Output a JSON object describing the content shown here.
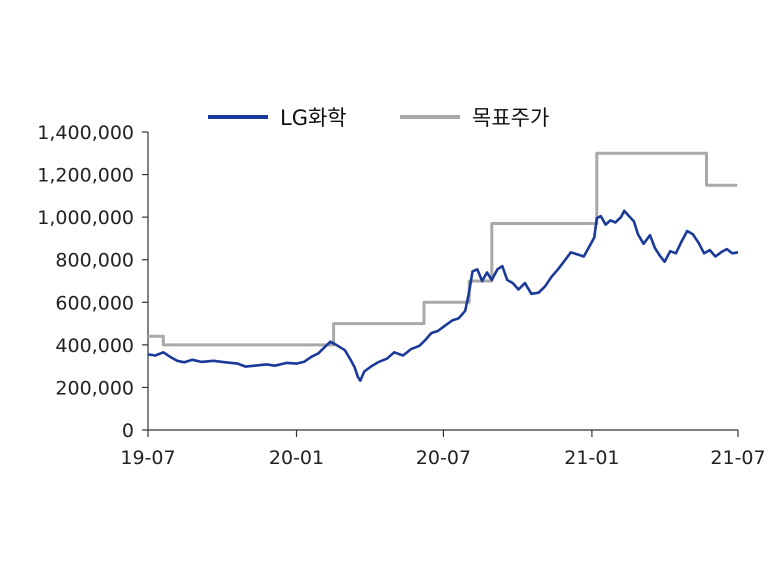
{
  "chart_data": {
    "type": "line",
    "title": "",
    "xlabel": "",
    "ylabel": "",
    "ylim": [
      0,
      1400000
    ],
    "yticks": [
      0,
      200000,
      400000,
      600000,
      800000,
      1000000,
      1200000,
      1400000
    ],
    "ytick_labels": [
      "0",
      "200,000",
      "400,000",
      "600,000",
      "800,000",
      "1,000,000",
      "1,200,000",
      "1,400,000"
    ],
    "xlim": [
      "2019-07-01",
      "2021-07-01"
    ],
    "xticks": [
      "2019-07-01",
      "2020-01-01",
      "2020-07-01",
      "2021-01-01",
      "2021-07-01"
    ],
    "xtick_labels": [
      "19-07",
      "20-01",
      "20-07",
      "21-01",
      "21-07"
    ],
    "grid": false,
    "legend_position": "top",
    "series": [
      {
        "name": "LG화학",
        "color": "#1a3a99",
        "style": "line",
        "points": [
          [
            "2019-07-01",
            355000
          ],
          [
            "2019-07-10",
            350000
          ],
          [
            "2019-07-20",
            365000
          ],
          [
            "2019-07-28",
            345000
          ],
          [
            "2019-08-06",
            325000
          ],
          [
            "2019-08-15",
            318000
          ],
          [
            "2019-08-25",
            330000
          ],
          [
            "2019-09-05",
            320000
          ],
          [
            "2019-09-20",
            325000
          ],
          [
            "2019-10-05",
            318000
          ],
          [
            "2019-10-20",
            312000
          ],
          [
            "2019-10-30",
            298000
          ],
          [
            "2019-11-10",
            302000
          ],
          [
            "2019-11-25",
            308000
          ],
          [
            "2019-12-05",
            302000
          ],
          [
            "2019-12-20",
            315000
          ],
          [
            "2020-01-01",
            312000
          ],
          [
            "2020-01-10",
            320000
          ],
          [
            "2020-01-20",
            345000
          ],
          [
            "2020-01-28",
            360000
          ],
          [
            "2020-02-05",
            390000
          ],
          [
            "2020-02-12",
            415000
          ],
          [
            "2020-02-20",
            398000
          ],
          [
            "2020-03-01",
            375000
          ],
          [
            "2020-03-08",
            330000
          ],
          [
            "2020-03-13",
            295000
          ],
          [
            "2020-03-17",
            250000
          ],
          [
            "2020-03-20",
            232000
          ],
          [
            "2020-03-25",
            275000
          ],
          [
            "2020-04-03",
            300000
          ],
          [
            "2020-04-12",
            320000
          ],
          [
            "2020-04-22",
            335000
          ],
          [
            "2020-05-01",
            365000
          ],
          [
            "2020-05-12",
            350000
          ],
          [
            "2020-05-22",
            380000
          ],
          [
            "2020-06-01",
            395000
          ],
          [
            "2020-06-08",
            420000
          ],
          [
            "2020-06-16",
            455000
          ],
          [
            "2020-06-24",
            465000
          ],
          [
            "2020-07-03",
            490000
          ],
          [
            "2020-07-12",
            515000
          ],
          [
            "2020-07-20",
            525000
          ],
          [
            "2020-07-28",
            560000
          ],
          [
            "2020-08-02",
            650000
          ],
          [
            "2020-08-06",
            745000
          ],
          [
            "2020-08-12",
            755000
          ],
          [
            "2020-08-18",
            700000
          ],
          [
            "2020-08-24",
            740000
          ],
          [
            "2020-08-30",
            705000
          ],
          [
            "2020-09-06",
            755000
          ],
          [
            "2020-09-12",
            770000
          ],
          [
            "2020-09-18",
            705000
          ],
          [
            "2020-09-25",
            690000
          ],
          [
            "2020-10-02",
            660000
          ],
          [
            "2020-10-10",
            690000
          ],
          [
            "2020-10-18",
            640000
          ],
          [
            "2020-10-27",
            645000
          ],
          [
            "2020-11-04",
            675000
          ],
          [
            "2020-11-12",
            720000
          ],
          [
            "2020-11-20",
            755000
          ],
          [
            "2020-11-28",
            795000
          ],
          [
            "2020-12-06",
            835000
          ],
          [
            "2020-12-14",
            825000
          ],
          [
            "2020-12-22",
            815000
          ],
          [
            "2020-12-30",
            870000
          ],
          [
            "2021-01-04",
            905000
          ],
          [
            "2021-01-07",
            995000
          ],
          [
            "2021-01-12",
            1005000
          ],
          [
            "2021-01-18",
            965000
          ],
          [
            "2021-01-24",
            985000
          ],
          [
            "2021-01-30",
            975000
          ],
          [
            "2021-02-06",
            1000000
          ],
          [
            "2021-02-10",
            1030000
          ],
          [
            "2021-02-16",
            1005000
          ],
          [
            "2021-02-22",
            980000
          ],
          [
            "2021-02-27",
            920000
          ],
          [
            "2021-03-06",
            875000
          ],
          [
            "2021-03-14",
            915000
          ],
          [
            "2021-03-20",
            855000
          ],
          [
            "2021-03-26",
            820000
          ],
          [
            "2021-04-01",
            790000
          ],
          [
            "2021-04-08",
            840000
          ],
          [
            "2021-04-15",
            830000
          ],
          [
            "2021-04-22",
            885000
          ],
          [
            "2021-04-29",
            935000
          ],
          [
            "2021-05-06",
            920000
          ],
          [
            "2021-05-13",
            880000
          ],
          [
            "2021-05-20",
            830000
          ],
          [
            "2021-05-27",
            845000
          ],
          [
            "2021-06-03",
            815000
          ],
          [
            "2021-06-10",
            835000
          ],
          [
            "2021-06-17",
            850000
          ],
          [
            "2021-06-24",
            830000
          ],
          [
            "2021-07-01",
            835000
          ]
        ]
      },
      {
        "name": "목표주가",
        "color": "#a9a9a9",
        "style": "step",
        "points": [
          [
            "2019-07-01",
            440000
          ],
          [
            "2019-07-20",
            440000
          ],
          [
            "2019-07-20",
            400000
          ],
          [
            "2020-02-16",
            400000
          ],
          [
            "2020-02-16",
            500000
          ],
          [
            "2020-06-07",
            500000
          ],
          [
            "2020-06-07",
            600000
          ],
          [
            "2020-08-02",
            600000
          ],
          [
            "2020-08-02",
            700000
          ],
          [
            "2020-08-30",
            700000
          ],
          [
            "2020-08-30",
            970000
          ],
          [
            "2021-01-07",
            970000
          ],
          [
            "2021-01-07",
            1300000
          ],
          [
            "2021-05-23",
            1300000
          ],
          [
            "2021-05-23",
            1150000
          ],
          [
            "2021-06-30",
            1150000
          ]
        ]
      }
    ]
  }
}
